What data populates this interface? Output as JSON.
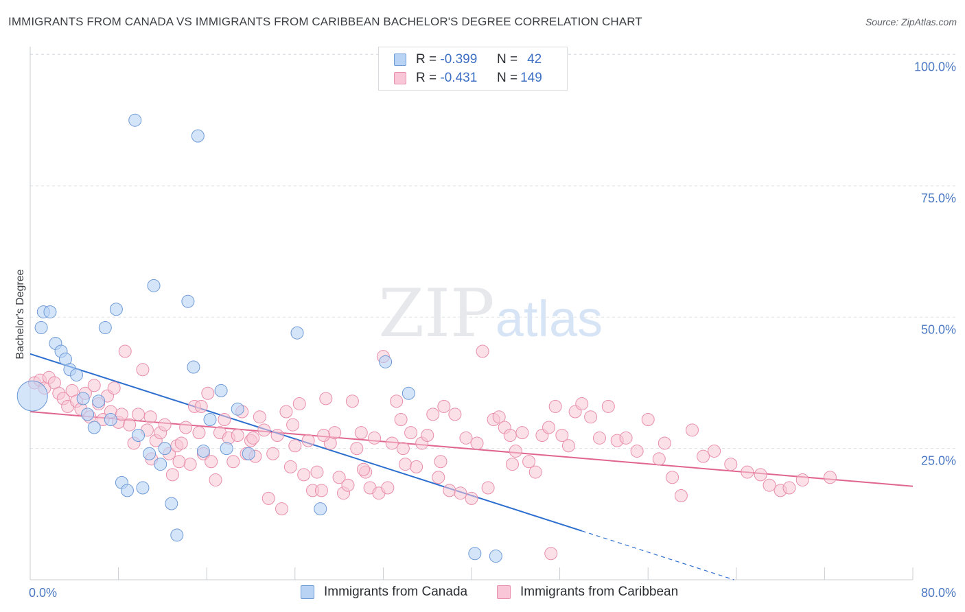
{
  "title": "IMMIGRANTS FROM CANADA VS IMMIGRANTS FROM CARIBBEAN BACHELOR'S DEGREE CORRELATION CHART",
  "source": "Source: ZipAtlas.com",
  "watermark": {
    "zip": "ZIP",
    "atlas": "atlas"
  },
  "legend": {
    "canada": {
      "r_label": "R =",
      "r_value": "-0.399",
      "n_label": "N =",
      "n_value": "42"
    },
    "caribbean": {
      "r_label": "R =",
      "r_value": "-0.431",
      "n_label": "N =",
      "n_value": "149"
    }
  },
  "colors": {
    "canada_fill": "#b9d3f5",
    "canada_stroke": "#6e9ad6",
    "canada_line": "#2d6fcf",
    "caribbean_fill": "#f8c6d6",
    "caribbean_stroke": "#e98eab",
    "caribbean_line": "#e0668f",
    "tick_text": "#4a78c2",
    "grid": "#dfe2e6"
  },
  "chart_data": {
    "type": "scatter",
    "title": "IMMIGRANTS FROM CANADA VS IMMIGRANTS FROM CARIBBEAN BACHELOR'S DEGREE CORRELATION CHART",
    "xlabel": "",
    "ylabel": "Bachelor's Degree",
    "xlim": [
      0,
      80
    ],
    "ylim": [
      0,
      100
    ],
    "x_ticks": [
      "0.0%",
      "80.0%"
    ],
    "y_ticks": [
      {
        "value": 25,
        "label": "25.0%"
      },
      {
        "value": 50,
        "label": "50.0%"
      },
      {
        "value": 75,
        "label": "75.0%"
      },
      {
        "value": 100,
        "label": "100.0%"
      }
    ],
    "grid": true,
    "legend_position": "top-center",
    "series": [
      {
        "name": "Immigrants from Canada",
        "r": -0.399,
        "n": 42,
        "trend": {
          "x0": 0,
          "y0": 43.0,
          "x1": 50,
          "y1": 9.3,
          "dash_to_x": 80,
          "dash_to_y": -10.9
        },
        "points": [
          [
            0.2,
            35.0
          ],
          [
            1.0,
            48.0
          ],
          [
            1.2,
            51.0
          ],
          [
            1.8,
            51.0
          ],
          [
            2.3,
            45.0
          ],
          [
            2.8,
            43.5
          ],
          [
            3.2,
            42.0
          ],
          [
            3.6,
            40.0
          ],
          [
            4.2,
            39.0
          ],
          [
            4.8,
            34.5
          ],
          [
            5.2,
            31.5
          ],
          [
            5.8,
            29.0
          ],
          [
            6.2,
            34.0
          ],
          [
            6.8,
            48.0
          ],
          [
            7.3,
            30.5
          ],
          [
            7.8,
            51.5
          ],
          [
            8.3,
            18.5
          ],
          [
            8.8,
            17.0
          ],
          [
            9.5,
            87.5
          ],
          [
            9.8,
            27.5
          ],
          [
            10.2,
            17.5
          ],
          [
            10.8,
            24.0
          ],
          [
            11.2,
            56.0
          ],
          [
            11.8,
            22.0
          ],
          [
            12.2,
            25.0
          ],
          [
            12.8,
            14.5
          ],
          [
            13.3,
            8.5
          ],
          [
            14.3,
            53.0
          ],
          [
            14.8,
            40.5
          ],
          [
            15.2,
            84.5
          ],
          [
            15.7,
            24.5
          ],
          [
            16.3,
            30.5
          ],
          [
            17.3,
            36.0
          ],
          [
            17.8,
            25.0
          ],
          [
            18.8,
            32.5
          ],
          [
            19.8,
            24.0
          ],
          [
            24.2,
            47.0
          ],
          [
            26.3,
            13.5
          ],
          [
            32.2,
            41.5
          ],
          [
            34.3,
            35.5
          ],
          [
            40.3,
            5.0
          ],
          [
            42.2,
            4.5
          ]
        ]
      },
      {
        "name": "Immigrants from Caribbean",
        "r": -0.431,
        "n": 149,
        "trend": {
          "x0": 0,
          "y0": 32.0,
          "x1": 80,
          "y1": 17.8
        },
        "points": [
          [
            0.4,
            37.5
          ],
          [
            0.9,
            38.0
          ],
          [
            1.3,
            36.5
          ],
          [
            1.7,
            38.5
          ],
          [
            2.2,
            37.5
          ],
          [
            2.6,
            35.5
          ],
          [
            3.0,
            34.5
          ],
          [
            3.4,
            33.0
          ],
          [
            3.8,
            36.0
          ],
          [
            4.2,
            34.0
          ],
          [
            4.6,
            32.5
          ],
          [
            5.0,
            35.5
          ],
          [
            5.4,
            31.0
          ],
          [
            5.8,
            37.0
          ],
          [
            6.2,
            33.5
          ],
          [
            6.6,
            30.5
          ],
          [
            7.0,
            35.0
          ],
          [
            7.3,
            32.0
          ],
          [
            7.6,
            36.5
          ],
          [
            8.0,
            30.0
          ],
          [
            8.3,
            31.5
          ],
          [
            8.6,
            43.5
          ],
          [
            9.0,
            29.5
          ],
          [
            9.4,
            26.0
          ],
          [
            9.8,
            31.5
          ],
          [
            10.2,
            40.0
          ],
          [
            10.6,
            28.5
          ],
          [
            11.0,
            23.0
          ],
          [
            11.4,
            26.5
          ],
          [
            11.8,
            28.0
          ],
          [
            12.2,
            29.5
          ],
          [
            12.6,
            24.0
          ],
          [
            12.9,
            20.0
          ],
          [
            13.3,
            25.5
          ],
          [
            13.7,
            26.0
          ],
          [
            14.1,
            29.0
          ],
          [
            14.5,
            22.0
          ],
          [
            14.9,
            33.0
          ],
          [
            15.3,
            28.0
          ],
          [
            15.7,
            24.0
          ],
          [
            16.1,
            35.5
          ],
          [
            16.4,
            22.5
          ],
          [
            16.8,
            19.0
          ],
          [
            17.2,
            28.0
          ],
          [
            17.6,
            30.5
          ],
          [
            18.0,
            27.0
          ],
          [
            18.4,
            22.5
          ],
          [
            18.8,
            27.5
          ],
          [
            19.2,
            32.0
          ],
          [
            19.6,
            24.0
          ],
          [
            20.0,
            26.5
          ],
          [
            20.4,
            23.5
          ],
          [
            20.8,
            31.0
          ],
          [
            21.2,
            28.5
          ],
          [
            21.6,
            15.5
          ],
          [
            22.0,
            24.0
          ],
          [
            22.4,
            27.5
          ],
          [
            22.8,
            13.5
          ],
          [
            23.2,
            32.0
          ],
          [
            23.6,
            21.5
          ],
          [
            24.0,
            25.5
          ],
          [
            24.4,
            33.5
          ],
          [
            24.8,
            20.0
          ],
          [
            25.2,
            26.5
          ],
          [
            25.6,
            17.0
          ],
          [
            26.0,
            20.5
          ],
          [
            26.4,
            17.0
          ],
          [
            26.8,
            34.5
          ],
          [
            27.2,
            26.0
          ],
          [
            27.6,
            28.0
          ],
          [
            28.0,
            19.5
          ],
          [
            28.4,
            16.5
          ],
          [
            28.8,
            18.0
          ],
          [
            29.2,
            34.0
          ],
          [
            29.6,
            25.0
          ],
          [
            30.0,
            28.0
          ],
          [
            30.4,
            20.5
          ],
          [
            30.8,
            17.5
          ],
          [
            31.2,
            27.0
          ],
          [
            31.6,
            16.5
          ],
          [
            32.0,
            42.5
          ],
          [
            32.4,
            17.5
          ],
          [
            32.8,
            26.0
          ],
          [
            33.2,
            34.0
          ],
          [
            33.6,
            30.5
          ],
          [
            34.0,
            22.0
          ],
          [
            34.5,
            28.0
          ],
          [
            35.0,
            21.5
          ],
          [
            35.5,
            26.0
          ],
          [
            36.0,
            27.5
          ],
          [
            36.5,
            31.5
          ],
          [
            37.0,
            19.5
          ],
          [
            37.5,
            33.0
          ],
          [
            38.0,
            17.0
          ],
          [
            38.5,
            31.5
          ],
          [
            39.0,
            16.5
          ],
          [
            39.5,
            27.0
          ],
          [
            40.0,
            15.5
          ],
          [
            40.5,
            26.0
          ],
          [
            41.0,
            43.5
          ],
          [
            41.5,
            17.5
          ],
          [
            42.0,
            30.5
          ],
          [
            42.5,
            31.0
          ],
          [
            43.0,
            29.0
          ],
          [
            43.5,
            27.5
          ],
          [
            44.0,
            24.5
          ],
          [
            44.6,
            28.0
          ],
          [
            45.2,
            22.5
          ],
          [
            45.8,
            20.5
          ],
          [
            46.4,
            27.5
          ],
          [
            47.0,
            29.0
          ],
          [
            47.6,
            33.0
          ],
          [
            48.2,
            27.5
          ],
          [
            48.8,
            25.5
          ],
          [
            49.4,
            32.0
          ],
          [
            50.0,
            33.5
          ],
          [
            50.8,
            31.0
          ],
          [
            51.6,
            27.0
          ],
          [
            52.4,
            33.0
          ],
          [
            53.2,
            26.5
          ],
          [
            54.0,
            27.0
          ],
          [
            55.0,
            24.5
          ],
          [
            56.0,
            30.5
          ],
          [
            57.0,
            23.0
          ],
          [
            57.5,
            26.0
          ],
          [
            58.2,
            19.5
          ],
          [
            59.0,
            16.0
          ],
          [
            60.0,
            28.5
          ],
          [
            61.0,
            23.5
          ],
          [
            62.0,
            24.5
          ],
          [
            63.5,
            22.0
          ],
          [
            65.0,
            20.5
          ],
          [
            66.2,
            20.0
          ],
          [
            67.0,
            18.0
          ],
          [
            68.0,
            17.0
          ],
          [
            68.8,
            17.5
          ],
          [
            70.0,
            19.0
          ],
          [
            72.5,
            19.5
          ],
          [
            10.9,
            31.0
          ],
          [
            15.5,
            33.0
          ],
          [
            20.2,
            27.0
          ],
          [
            23.8,
            29.5
          ],
          [
            26.6,
            27.5
          ],
          [
            33.8,
            25.0
          ],
          [
            37.2,
            22.5
          ],
          [
            43.7,
            22.0
          ],
          [
            47.2,
            5.0
          ],
          [
            30.2,
            21.0
          ],
          [
            13.5,
            22.5
          ]
        ]
      }
    ]
  },
  "bottom_legend": [
    {
      "label": "Immigrants from Canada"
    },
    {
      "label": "Immigrants from Caribbean"
    }
  ]
}
